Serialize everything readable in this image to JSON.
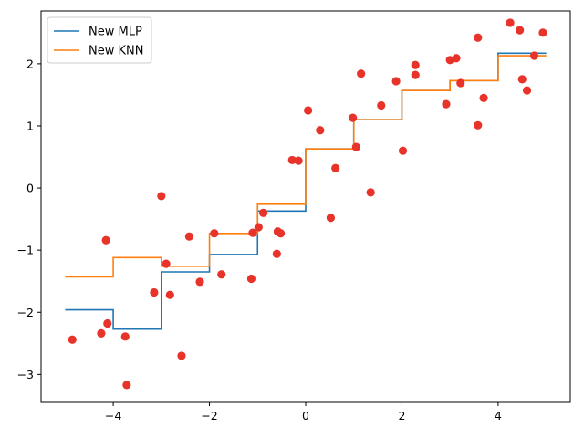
{
  "chart_data": {
    "type": "line",
    "title": "",
    "xlabel": "",
    "ylabel": "",
    "xlim": [
      -5.5,
      5.5
    ],
    "ylim": [
      -3.45,
      2.85
    ],
    "x_ticks": [
      -4,
      -2,
      0,
      2,
      4
    ],
    "x_tick_labels": [
      "−4",
      "−2",
      "0",
      "2",
      "4"
    ],
    "y_ticks": [
      -3,
      -2,
      -1,
      0,
      1,
      2
    ],
    "y_tick_labels": [
      "−3",
      "−2",
      "−1",
      "0",
      "1",
      "2"
    ],
    "grid": false,
    "legend_position": "top-left",
    "series": [
      {
        "name": "New MLP",
        "type": "step-line",
        "color": "#1f77b4",
        "x": [
          -5,
          -4,
          -4,
          -3,
          -3,
          -2,
          -2,
          -1,
          -1,
          0,
          0,
          1,
          1,
          2,
          2,
          3,
          3,
          4,
          4,
          5
        ],
        "y": [
          -1.96,
          -1.96,
          -2.27,
          -2.27,
          -1.35,
          -1.35,
          -1.07,
          -1.07,
          -0.37,
          -0.37,
          0.63,
          0.63,
          1.1,
          1.1,
          1.57,
          1.57,
          1.73,
          1.73,
          2.17,
          2.17
        ]
      },
      {
        "name": "New KNN",
        "type": "step-line",
        "color": "#ff7f0e",
        "x": [
          -5,
          -4,
          -4,
          -3,
          -3,
          -2,
          -2,
          -1,
          -1,
          0,
          0,
          1,
          1,
          2,
          2,
          3,
          3,
          4,
          4,
          5
        ],
        "y": [
          -1.43,
          -1.43,
          -1.12,
          -1.12,
          -1.26,
          -1.26,
          -0.73,
          -0.73,
          -0.26,
          -0.26,
          0.63,
          0.63,
          1.1,
          1.1,
          1.57,
          1.57,
          1.73,
          1.73,
          2.13,
          2.13
        ]
      },
      {
        "type": "scatter",
        "color": "#e8332a",
        "x": [
          -4.85,
          -4.25,
          -4.15,
          -4.12,
          -3.75,
          -3.72,
          -3.15,
          -3.0,
          -2.9,
          -2.82,
          -2.58,
          -2.42,
          -2.2,
          -1.9,
          -1.75,
          -1.13,
          -1.1,
          -0.98,
          -0.88,
          -0.6,
          -0.58,
          -0.52,
          -0.28,
          -0.15,
          0.05,
          0.3,
          0.52,
          0.62,
          0.98,
          1.05,
          1.15,
          1.35,
          1.57,
          1.88,
          2.02,
          2.28,
          2.28,
          2.92,
          3.0,
          3.13,
          3.22,
          3.58,
          3.58,
          3.7,
          4.25,
          4.45,
          4.5,
          4.6,
          4.75,
          4.93
        ],
        "y": [
          -2.44,
          -2.34,
          -0.84,
          -2.18,
          -2.39,
          -3.17,
          -1.68,
          -0.13,
          -1.22,
          -1.72,
          -2.7,
          -0.78,
          -1.51,
          -0.73,
          -1.39,
          -1.46,
          -0.72,
          -0.63,
          -0.4,
          -1.06,
          -0.7,
          -0.73,
          0.45,
          0.44,
          1.25,
          0.93,
          -0.48,
          0.32,
          1.13,
          0.66,
          1.84,
          -0.07,
          1.33,
          1.72,
          0.6,
          1.98,
          1.82,
          1.35,
          2.06,
          2.09,
          1.69,
          2.42,
          1.01,
          1.45,
          2.66,
          2.54,
          1.75,
          1.57,
          2.13,
          2.5
        ]
      }
    ]
  }
}
